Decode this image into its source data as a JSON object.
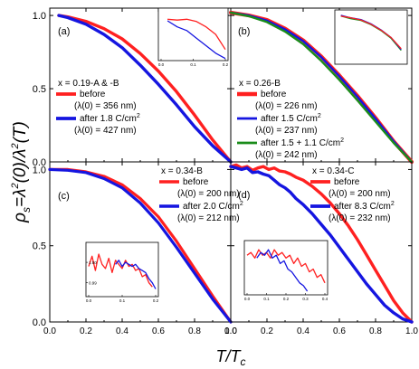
{
  "figure": {
    "ylabel": "ρs=λ²(0)/λ²(T)",
    "ylabel_parts": {
      "rho": "ρ",
      "s": "s",
      "mid": "=λ",
      "two": "2",
      "zero": "(0)/λ",
      "two2": "2",
      "t": "(T)"
    },
    "xlabel": "T/Tc",
    "xlabel_parts": {
      "t": "T/",
      "T": "T",
      "c": "c"
    }
  },
  "chart_data": [
    {
      "type": "line",
      "panel": "a",
      "panel_label": "(a)",
      "xlim": [
        0,
        1
      ],
      "ylim": [
        0,
        1.05
      ],
      "xticks": [
        "0.0",
        "0.2",
        "0.4",
        "0.6",
        "0.8",
        "1.0"
      ],
      "xtick_values": [
        0,
        0.2,
        0.4,
        0.6,
        0.8,
        1.0
      ],
      "yticks": [
        "0.0",
        "0.5",
        "1.0"
      ],
      "ytick_values": [
        0,
        0.5,
        1.0
      ],
      "show_xtick_labels": false,
      "show_ytick_labels": true,
      "header": "x = 0.19-A & -B",
      "series": [
        {
          "name": "before",
          "sublabel": "(λ(0) = 356 nm)",
          "color": "#ff2020",
          "width": 3.4,
          "x": [
            0.05,
            0.1,
            0.2,
            0.3,
            0.4,
            0.5,
            0.6,
            0.7,
            0.8,
            0.9,
            1.0
          ],
          "y": [
            1.0,
            0.99,
            0.96,
            0.91,
            0.84,
            0.74,
            0.62,
            0.48,
            0.32,
            0.15,
            0.0
          ]
        },
        {
          "name": "after 1.8 C/cm",
          "sup": "2",
          "sublabel": "(λ(0) = 427 nm)",
          "color": "#1515e0",
          "width": 3.4,
          "x": [
            0.05,
            0.1,
            0.2,
            0.3,
            0.4,
            0.5,
            0.6,
            0.7,
            0.8,
            0.9,
            1.0
          ],
          "y": [
            1.0,
            0.985,
            0.94,
            0.87,
            0.78,
            0.66,
            0.53,
            0.39,
            0.24,
            0.11,
            0.0
          ]
        }
      ],
      "inset": {
        "xticks": [
          "0.0",
          "0.1",
          "0.2"
        ],
        "xlim": [
          0,
          0.2
        ],
        "ylim": [
          0.95,
          1.01
        ],
        "series": [
          {
            "color": "#ff2020",
            "x": [
              0.02,
              0.05,
              0.08,
              0.11,
              0.14,
              0.17,
              0.2
            ],
            "y": [
              1.0,
              0.999,
              1.0,
              0.997,
              0.99,
              0.98,
              0.96
            ]
          },
          {
            "color": "#1515e0",
            "x": [
              0.02,
              0.05,
              0.08,
              0.11,
              0.14,
              0.17,
              0.2
            ],
            "y": [
              0.998,
              0.99,
              0.985,
              0.975,
              0.965,
              0.955,
              0.948
            ]
          }
        ]
      }
    },
    {
      "type": "line",
      "panel": "b",
      "panel_label": "(b)",
      "xlim": [
        0,
        1
      ],
      "ylim": [
        0,
        1.05
      ],
      "xticks": [
        "0.0",
        "0.2",
        "0.4",
        "0.6",
        "0.8",
        "1.0"
      ],
      "xtick_values": [
        0,
        0.2,
        0.4,
        0.6,
        0.8,
        1.0
      ],
      "yticks": [
        "0.0",
        "0.5",
        "1.0"
      ],
      "ytick_values": [
        0,
        0.5,
        1.0
      ],
      "show_xtick_labels": false,
      "show_ytick_labels": false,
      "header": "x = 0.26-B",
      "series": [
        {
          "name": "before",
          "sublabel": "(λ(0) = 226 nm)",
          "color": "#ff2020",
          "width": 4.2,
          "x": [
            0.0,
            0.1,
            0.2,
            0.3,
            0.4,
            0.5,
            0.6,
            0.7,
            0.8,
            0.9,
            1.0
          ],
          "y": [
            1.02,
            1.0,
            0.97,
            0.91,
            0.83,
            0.72,
            0.59,
            0.45,
            0.3,
            0.14,
            0.0
          ]
        },
        {
          "name": "after 1.5 C/cm",
          "sup": "2",
          "sublabel": "(λ(0) = 237 nm)",
          "color": "#1515e0",
          "width": 2.4,
          "x": [
            0.0,
            0.1,
            0.2,
            0.3,
            0.4,
            0.5,
            0.6,
            0.7,
            0.8,
            0.9,
            1.0
          ],
          "y": [
            1.02,
            1.0,
            0.965,
            0.905,
            0.825,
            0.715,
            0.585,
            0.445,
            0.295,
            0.14,
            0.0
          ]
        },
        {
          "name": "after 1.5 + 1.1 C/cm",
          "sup": "2",
          "sublabel": "(λ(0) = 242 nm)",
          "color": "#1a8c1a",
          "width": 2.4,
          "x": [
            0.0,
            0.1,
            0.2,
            0.3,
            0.4,
            0.5,
            0.6,
            0.7,
            0.8,
            0.9,
            1.0
          ],
          "y": [
            1.02,
            0.995,
            0.955,
            0.89,
            0.805,
            0.69,
            0.56,
            0.42,
            0.275,
            0.13,
            0.0
          ]
        }
      ],
      "inset": {
        "xticks": [],
        "xlim": [
          0,
          1
        ],
        "ylim": [
          0.5,
          1.05
        ],
        "series": [
          {
            "color": "#1a8c1a",
            "x": [
              0.05,
              0.2,
              0.35,
              0.5,
              0.65,
              0.8,
              0.95
            ],
            "y": [
              1.02,
              0.99,
              0.97,
              0.92,
              0.85,
              0.76,
              0.62
            ]
          },
          {
            "color": "#1515e0",
            "x": [
              0.05,
              0.2,
              0.35,
              0.5,
              0.65,
              0.8,
              0.95
            ],
            "y": [
              1.03,
              1.0,
              0.98,
              0.93,
              0.86,
              0.77,
              0.63
            ]
          },
          {
            "color": "#ff2020",
            "x": [
              0.05,
              0.2,
              0.35,
              0.5,
              0.65,
              0.8,
              0.95
            ],
            "y": [
              1.02,
              1.0,
              0.975,
              0.925,
              0.855,
              0.77,
              0.64
            ]
          }
        ]
      }
    },
    {
      "type": "line",
      "panel": "c",
      "panel_label": "(c)",
      "xlim": [
        0,
        1
      ],
      "ylim": [
        0,
        1.05
      ],
      "xticks": [
        "0.0",
        "0.2",
        "0.4",
        "0.6",
        "0.8",
        "1.0"
      ],
      "xtick_values": [
        0,
        0.2,
        0.4,
        0.6,
        0.8,
        1.0
      ],
      "yticks": [
        "0.0",
        "0.5",
        "1.0"
      ],
      "ytick_values": [
        0,
        0.5,
        1.0
      ],
      "show_xtick_labels": true,
      "show_ytick_labels": true,
      "header": "x = 0.34-B",
      "series": [
        {
          "name": "before",
          "sublabel": "(λ(0) = 200 nm)",
          "color": "#ff2020",
          "width": 3.2,
          "x": [
            0.0,
            0.1,
            0.2,
            0.3,
            0.4,
            0.5,
            0.6,
            0.7,
            0.8,
            0.9,
            1.0
          ],
          "y": [
            1.0,
            1.0,
            0.985,
            0.955,
            0.9,
            0.81,
            0.69,
            0.53,
            0.35,
            0.17,
            0.0
          ]
        },
        {
          "name": "after 2.0 C/cm",
          "sup": "2",
          "sublabel": "(λ(0) = 212 nm)",
          "color": "#1515e0",
          "width": 3.2,
          "x": [
            0.0,
            0.1,
            0.2,
            0.3,
            0.4,
            0.5,
            0.6,
            0.7,
            0.8,
            0.9,
            1.0
          ],
          "y": [
            1.0,
            0.995,
            0.98,
            0.94,
            0.88,
            0.78,
            0.65,
            0.49,
            0.32,
            0.15,
            0.0
          ]
        }
      ],
      "inset": {
        "xticks": [
          "0.0",
          "0.1",
          "0.2"
        ],
        "yticks": [
          "0.99",
          "1.00"
        ],
        "xlim": [
          0,
          0.2
        ],
        "ylim": [
          0.985,
          1.008
        ],
        "series": [
          {
            "color": "#ff2020",
            "x": [
              0.0,
              0.01,
              0.02,
              0.03,
              0.04,
              0.05,
              0.06,
              0.07,
              0.08,
              0.09,
              0.1,
              0.11,
              0.12,
              0.13,
              0.14,
              0.15,
              0.16,
              0.17,
              0.18,
              0.19
            ],
            "y": [
              0.998,
              1.003,
              0.996,
              1.004,
              0.999,
              0.997,
              1.002,
              0.995,
              1.001,
              0.999,
              0.997,
              1.001,
              0.998,
              0.999,
              0.996,
              0.997,
              0.993,
              0.994,
              0.99,
              0.988
            ]
          },
          {
            "color": "#1515e0",
            "x": [
              0.08,
              0.09,
              0.1,
              0.11,
              0.12,
              0.13,
              0.14,
              0.15,
              0.16,
              0.17,
              0.18,
              0.19,
              0.2
            ],
            "y": [
              0.999,
              1.001,
              0.998,
              1.0,
              0.999,
              0.998,
              0.999,
              0.997,
              0.996,
              0.995,
              0.992,
              0.99,
              0.987
            ]
          }
        ]
      }
    },
    {
      "type": "line",
      "panel": "d",
      "panel_label": "(d)",
      "xlim": [
        0,
        1
      ],
      "ylim": [
        0,
        1.05
      ],
      "xticks": [
        "0.0",
        "0.2",
        "0.4",
        "0.6",
        "0.8",
        "1.0"
      ],
      "xtick_values": [
        0,
        0.2,
        0.4,
        0.6,
        0.8,
        1.0
      ],
      "yticks": [
        "0.0",
        "0.5",
        "1.0"
      ],
      "ytick_values": [
        0,
        0.5,
        1.0
      ],
      "show_xtick_labels": true,
      "show_ytick_labels": false,
      "header": "x = 0.34-C",
      "series": [
        {
          "name": "before",
          "sublabel": "(λ(0) = 200 nm)",
          "color": "#ff2020",
          "width": 3.4,
          "x": [
            0.0,
            0.03,
            0.06,
            0.09,
            0.12,
            0.15,
            0.18,
            0.21,
            0.24,
            0.27,
            0.3,
            0.33,
            0.36,
            0.4,
            0.45,
            0.5,
            0.55,
            0.6,
            0.65,
            0.7,
            0.75,
            0.8,
            0.85,
            0.9,
            0.95,
            1.0
          ],
          "y": [
            1.02,
            1.03,
            1.01,
            1.02,
            0.995,
            1.01,
            1.02,
            1.0,
            1.01,
            0.99,
            0.985,
            0.97,
            0.95,
            0.93,
            0.89,
            0.84,
            0.78,
            0.71,
            0.63,
            0.54,
            0.44,
            0.34,
            0.24,
            0.14,
            0.06,
            0.0
          ]
        },
        {
          "name": "after 8.3 C/cm",
          "sup": "2",
          "sublabel": "(λ(0) = 232 nm)",
          "color": "#1515e0",
          "width": 3.4,
          "x": [
            0.0,
            0.03,
            0.06,
            0.09,
            0.12,
            0.15,
            0.18,
            0.21,
            0.24,
            0.27,
            0.3,
            0.33,
            0.36,
            0.4,
            0.45,
            0.5,
            0.55,
            0.6,
            0.65,
            0.7,
            0.75,
            0.8,
            0.85,
            0.9,
            0.95,
            1.0
          ],
          "y": [
            1.02,
            1.01,
            1.0,
            1.01,
            0.98,
            0.985,
            0.97,
            0.96,
            0.93,
            0.9,
            0.88,
            0.85,
            0.81,
            0.77,
            0.71,
            0.64,
            0.57,
            0.49,
            0.41,
            0.33,
            0.25,
            0.18,
            0.11,
            0.06,
            0.02,
            0.0
          ]
        }
      ],
      "inset": {
        "xticks": [
          "0.0",
          "0.1",
          "0.2",
          "0.3",
          "0.4"
        ],
        "xlim": [
          0,
          0.4
        ],
        "ylim": [
          0.9,
          1.07
        ],
        "series": [
          {
            "color": "#ff2020",
            "x": [
              0.0,
              0.02,
              0.04,
              0.06,
              0.08,
              0.1,
              0.12,
              0.14,
              0.16,
              0.18,
              0.2,
              0.22,
              0.24,
              0.26,
              0.28,
              0.3,
              0.32,
              0.34,
              0.36,
              0.38,
              0.4
            ],
            "y": [
              1.03,
              1.04,
              1.02,
              1.05,
              1.03,
              1.04,
              1.02,
              1.05,
              1.03,
              1.04,
              1.02,
              1.03,
              1.0,
              1.02,
              0.99,
              1.0,
              0.97,
              0.98,
              0.95,
              0.96,
              0.93
            ]
          },
          {
            "color": "#1515e0",
            "x": [
              0.05,
              0.07,
              0.09,
              0.11,
              0.13,
              0.15,
              0.17,
              0.19,
              0.21,
              0.23,
              0.25,
              0.27,
              0.29,
              0.31
            ],
            "y": [
              1.02,
              1.04,
              1.03,
              1.05,
              1.02,
              1.03,
              1.0,
              1.01,
              0.98,
              0.97,
              0.95,
              0.93,
              0.92,
              0.9
            ]
          }
        ]
      }
    }
  ]
}
